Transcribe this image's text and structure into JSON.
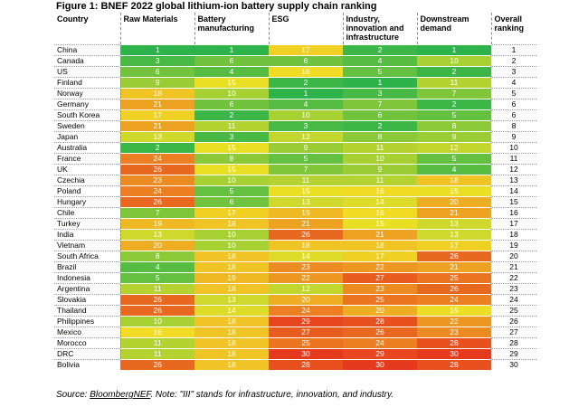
{
  "figure_title": "Figure 1: BNEF 2022 global lithium-ion battery supply chain ranking",
  "source_prefix": "Source: ",
  "source_org": "BloombergNEF",
  "source_note": ".  Note: \"III\" stands for infrastructure,  innovation, and industry.",
  "colors": {
    "green": "#2db34a",
    "yellow": "#f2e125",
    "red": "#e63a1e"
  },
  "chart_data": {
    "type": "table",
    "title": "Figure 1: BNEF 2022 global lithium-ion battery supply chain ranking",
    "columns": [
      "Country",
      "Raw Materials",
      "Battery manufacturing",
      "ESG",
      "Industry, innovation and infrastructure",
      "Downstream demand",
      "Overall ranking"
    ],
    "score_columns": [
      "Raw Materials",
      "Battery manufacturing",
      "ESG",
      "Industry, innovation and infrastructure",
      "Downstream demand"
    ],
    "score_range": [
      1,
      30
    ],
    "color_scale": "green (1) - yellow - red (30)",
    "rows": [
      {
        "country": "China",
        "scores": [
          1,
          1,
          17,
          2,
          1
        ],
        "overall": 1
      },
      {
        "country": "Canada",
        "scores": [
          3,
          6,
          6,
          4,
          10
        ],
        "overall": 2
      },
      {
        "country": "US",
        "scores": [
          6,
          4,
          16,
          5,
          2
        ],
        "overall": 3
      },
      {
        "country": "Finland",
        "scores": [
          9,
          15,
          2,
          1,
          11
        ],
        "overall": 4
      },
      {
        "country": "Norway",
        "scores": [
          18,
          10,
          1,
          3,
          7
        ],
        "overall": 5
      },
      {
        "country": "Germany",
        "scores": [
          21,
          6,
          4,
          7,
          2
        ],
        "overall": 6
      },
      {
        "country": "South Korea",
        "scores": [
          17,
          2,
          10,
          6,
          5
        ],
        "overall": 6
      },
      {
        "country": "Sweden",
        "scores": [
          21,
          11,
          3,
          2,
          8
        ],
        "overall": 8
      },
      {
        "country": "Japan",
        "scores": [
          13,
          3,
          12,
          8,
          9
        ],
        "overall": 9
      },
      {
        "country": "Australia",
        "scores": [
          2,
          15,
          9,
          11,
          12
        ],
        "overall": 10
      },
      {
        "country": "France",
        "scores": [
          24,
          8,
          5,
          10,
          5
        ],
        "overall": 11
      },
      {
        "country": "UK",
        "scores": [
          26,
          15,
          7,
          9,
          4
        ],
        "overall": 12
      },
      {
        "country": "Czechia",
        "scores": [
          23,
          10,
          11,
          11,
          18
        ],
        "overall": 13
      },
      {
        "country": "Poland",
        "scores": [
          24,
          5,
          15,
          16,
          15
        ],
        "overall": 14
      },
      {
        "country": "Hungary",
        "scores": [
          26,
          6,
          13,
          14,
          20
        ],
        "overall": 15
      },
      {
        "country": "Chile",
        "scores": [
          7,
          17,
          19,
          16,
          21
        ],
        "overall": 16
      },
      {
        "country": "Turkey",
        "scores": [
          19,
          18,
          21,
          15,
          13
        ],
        "overall": 17
      },
      {
        "country": "India",
        "scores": [
          13,
          10,
          26,
          21,
          13
        ],
        "overall": 18
      },
      {
        "country": "Vietnam",
        "scores": [
          20,
          10,
          18,
          18,
          17
        ],
        "overall": 19
      },
      {
        "country": "South Africa",
        "scores": [
          8,
          18,
          14,
          17,
          26
        ],
        "overall": 20
      },
      {
        "country": "Brazil",
        "scores": [
          4,
          18,
          23,
          22,
          21
        ],
        "overall": 21
      },
      {
        "country": "Indonesia",
        "scores": [
          5,
          19,
          22,
          27,
          25
        ],
        "overall": 22
      },
      {
        "country": "Argentina",
        "scores": [
          11,
          18,
          12,
          23,
          26
        ],
        "overall": 23
      },
      {
        "country": "Slovakia",
        "scores": [
          26,
          13,
          20,
          25,
          24
        ],
        "overall": 24
      },
      {
        "country": "Thailand",
        "scores": [
          26,
          14,
          24,
          20,
          15
        ],
        "overall": 25
      },
      {
        "country": "Philippines",
        "scores": [
          10,
          18,
          29,
          28,
          22
        ],
        "overall": 26
      },
      {
        "country": "Mexico",
        "scores": [
          16,
          18,
          27,
          26,
          23
        ],
        "overall": 27
      },
      {
        "country": "Morocco",
        "scores": [
          11,
          18,
          25,
          24,
          28
        ],
        "overall": 28
      },
      {
        "country": "DRC",
        "scores": [
          11,
          18,
          30,
          29,
          30
        ],
        "overall": 29
      },
      {
        "country": "Bolivia",
        "scores": [
          26,
          18,
          28,
          30,
          28
        ],
        "overall": 30
      }
    ]
  }
}
